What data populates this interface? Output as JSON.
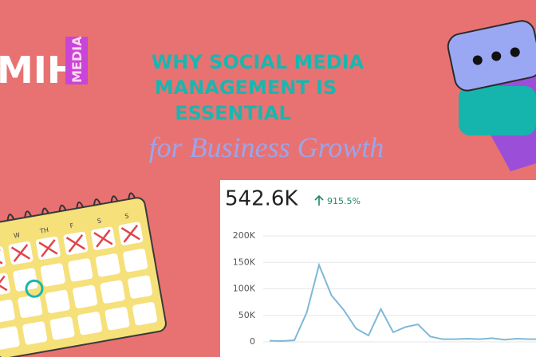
{
  "logo": {
    "text": "MIH",
    "sub": "MEDIA"
  },
  "title_lines": [
    "WHY SOCIAL MEDIA",
    "MANAGEMENT IS",
    "ESSENTIAL"
  ],
  "subtitle": "for Business Growth",
  "calendar": {
    "days": [
      "W",
      "TH",
      "F",
      "S",
      "S"
    ]
  },
  "chart_data": {
    "type": "line",
    "headline": "542.6K",
    "change": "915.5%",
    "categories": [
      null,
      null,
      null,
      null,
      null,
      null,
      null,
      null,
      null,
      null,
      null,
      null,
      null,
      null,
      null,
      null,
      null,
      null,
      null,
      null,
      null,
      null,
      null
    ],
    "series": [
      {
        "color": "#7fb8d8",
        "values": [
          2000,
          1500,
          3000,
          55000,
          145000,
          88000,
          60000,
          25000,
          12000,
          62000,
          18000,
          28000,
          33000,
          10000,
          5000,
          5000,
          6000,
          5000,
          7000,
          4000,
          6000,
          5000,
          5000
        ]
      }
    ],
    "ylim": [
      0,
      200000
    ],
    "yticks": [
      {
        "value": 0,
        "label": "0"
      },
      {
        "value": 50000,
        "label": "50K"
      },
      {
        "value": 100000,
        "label": "100K"
      },
      {
        "value": 150000,
        "label": "150K"
      },
      {
        "value": 200000,
        "label": "200K"
      }
    ],
    "grid": true
  }
}
